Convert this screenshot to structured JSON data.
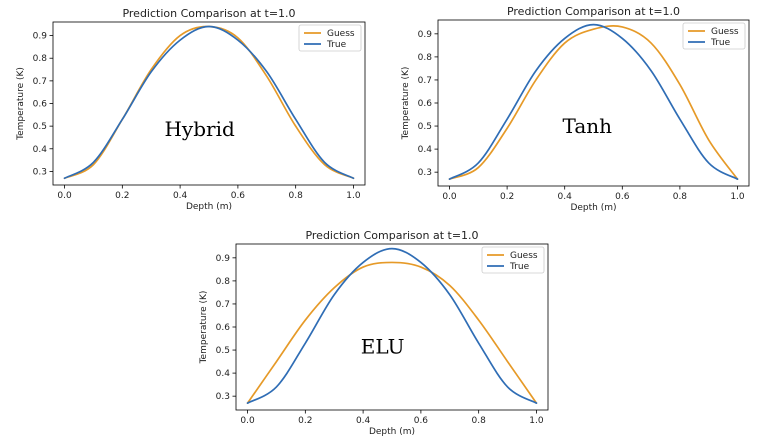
{
  "chart_data": [
    {
      "id": "hybrid",
      "type": "line",
      "title": "Prediction Comparison at t=1.0",
      "xlabel": "Depth (m)",
      "ylabel": "Temperature (K)",
      "overlay_label": "Hybrid",
      "xlim": [
        -0.04,
        1.04
      ],
      "ylim": [
        0.24,
        0.96
      ],
      "xticks": [
        0.0,
        0.2,
        0.4,
        0.6,
        0.8,
        1.0
      ],
      "xtick_labels": [
        "0.0",
        "0.2",
        "0.4",
        "0.6",
        "0.8",
        "1.0"
      ],
      "yticks": [
        0.3,
        0.4,
        0.5,
        0.6,
        0.7,
        0.8,
        0.9
      ],
      "ytick_labels": [
        "0.3",
        "0.4",
        "0.5",
        "0.6",
        "0.7",
        "0.8",
        "0.9"
      ],
      "legend_position": "top-right",
      "x": [
        0.0,
        0.1,
        0.2,
        0.3,
        0.4,
        0.5,
        0.6,
        0.7,
        0.8,
        0.9,
        1.0
      ],
      "series": [
        {
          "name": "Guess",
          "color": "#e69a28",
          "values": [
            0.27,
            0.33,
            0.53,
            0.75,
            0.9,
            0.94,
            0.89,
            0.72,
            0.5,
            0.33,
            0.27
          ]
        },
        {
          "name": "True",
          "color": "#2f6db5",
          "values": [
            0.27,
            0.34,
            0.53,
            0.74,
            0.88,
            0.94,
            0.88,
            0.74,
            0.53,
            0.34,
            0.27
          ]
        }
      ]
    },
    {
      "id": "tanh",
      "type": "line",
      "title": "Prediction Comparison at t=1.0",
      "xlabel": "Depth (m)",
      "ylabel": "Temperature (K)",
      "overlay_label": "Tanh",
      "xlim": [
        -0.04,
        1.04
      ],
      "ylim": [
        0.24,
        0.96
      ],
      "xticks": [
        0.0,
        0.2,
        0.4,
        0.6,
        0.8,
        1.0
      ],
      "xtick_labels": [
        "0.0",
        "0.2",
        "0.4",
        "0.6",
        "0.8",
        "1.0"
      ],
      "yticks": [
        0.3,
        0.4,
        0.5,
        0.6,
        0.7,
        0.8,
        0.9
      ],
      "ytick_labels": [
        "0.3",
        "0.4",
        "0.5",
        "0.6",
        "0.7",
        "0.8",
        "0.9"
      ],
      "legend_position": "top-right",
      "x": [
        0.0,
        0.1,
        0.2,
        0.3,
        0.4,
        0.5,
        0.6,
        0.7,
        0.8,
        0.9,
        1.0
      ],
      "series": [
        {
          "name": "Guess",
          "color": "#e69a28",
          "values": [
            0.27,
            0.32,
            0.49,
            0.7,
            0.86,
            0.92,
            0.93,
            0.86,
            0.68,
            0.44,
            0.27
          ]
        },
        {
          "name": "True",
          "color": "#2f6db5",
          "values": [
            0.27,
            0.34,
            0.53,
            0.74,
            0.88,
            0.94,
            0.88,
            0.74,
            0.53,
            0.34,
            0.27
          ]
        }
      ]
    },
    {
      "id": "elu",
      "type": "line",
      "title": "Prediction Comparison at t=1.0",
      "xlabel": "Depth (m)",
      "ylabel": "Temperature (K)",
      "overlay_label": "ELU",
      "xlim": [
        -0.04,
        1.04
      ],
      "ylim": [
        0.24,
        0.96
      ],
      "xticks": [
        0.0,
        0.2,
        0.4,
        0.6,
        0.8,
        1.0
      ],
      "xtick_labels": [
        "0.0",
        "0.2",
        "0.4",
        "0.6",
        "0.8",
        "1.0"
      ],
      "yticks": [
        0.3,
        0.4,
        0.5,
        0.6,
        0.7,
        0.8,
        0.9
      ],
      "ytick_labels": [
        "0.3",
        "0.4",
        "0.5",
        "0.6",
        "0.7",
        "0.8",
        "0.9"
      ],
      "legend_position": "top-right",
      "x": [
        0.0,
        0.1,
        0.2,
        0.3,
        0.4,
        0.5,
        0.6,
        0.7,
        0.8,
        0.9,
        1.0
      ],
      "series": [
        {
          "name": "Guess",
          "color": "#e69a28",
          "values": [
            0.27,
            0.45,
            0.63,
            0.77,
            0.86,
            0.88,
            0.86,
            0.78,
            0.63,
            0.45,
            0.27
          ]
        },
        {
          "name": "True",
          "color": "#2f6db5",
          "values": [
            0.27,
            0.34,
            0.53,
            0.74,
            0.88,
            0.94,
            0.88,
            0.74,
            0.53,
            0.34,
            0.27
          ]
        }
      ]
    }
  ]
}
